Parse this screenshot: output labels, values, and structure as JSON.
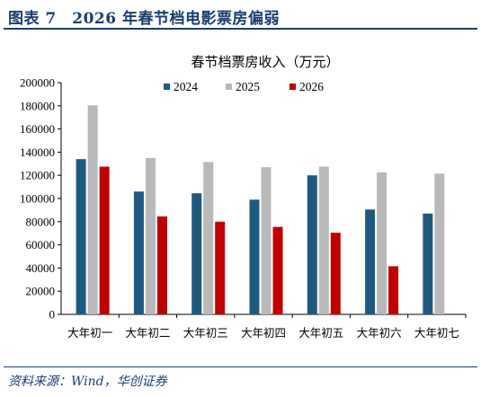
{
  "figure": {
    "title": "图表 7　2026 年春节档电影票房偏弱",
    "source": "资料来源：Wind，华创证券"
  },
  "colors": {
    "2024": "#1f5a7e",
    "2025": "#b9b9b9",
    "2026": "#c00000",
    "header": "#1a3d6e"
  },
  "chart_data": {
    "type": "bar",
    "title": "春节档票房收入（万元）",
    "xlabel": "",
    "ylabel": "",
    "ylim": [
      0,
      200000
    ],
    "yticks": [
      0,
      20000,
      40000,
      60000,
      80000,
      100000,
      120000,
      140000,
      160000,
      180000,
      200000
    ],
    "categories": [
      "大年初一",
      "大年初二",
      "大年初三",
      "大年初四",
      "大年初五",
      "大年初六",
      "大年初七"
    ],
    "legend_position": "top-center",
    "grid": false,
    "series": [
      {
        "name": "2024",
        "values": [
          134000,
          106000,
          104500,
          99000,
          120000,
          90500,
          87000
        ]
      },
      {
        "name": "2025",
        "values": [
          180500,
          135000,
          131500,
          127000,
          127500,
          122500,
          121500
        ]
      },
      {
        "name": "2026",
        "values": [
          127500,
          84500,
          80000,
          75500,
          70500,
          41500,
          null
        ]
      }
    ]
  }
}
